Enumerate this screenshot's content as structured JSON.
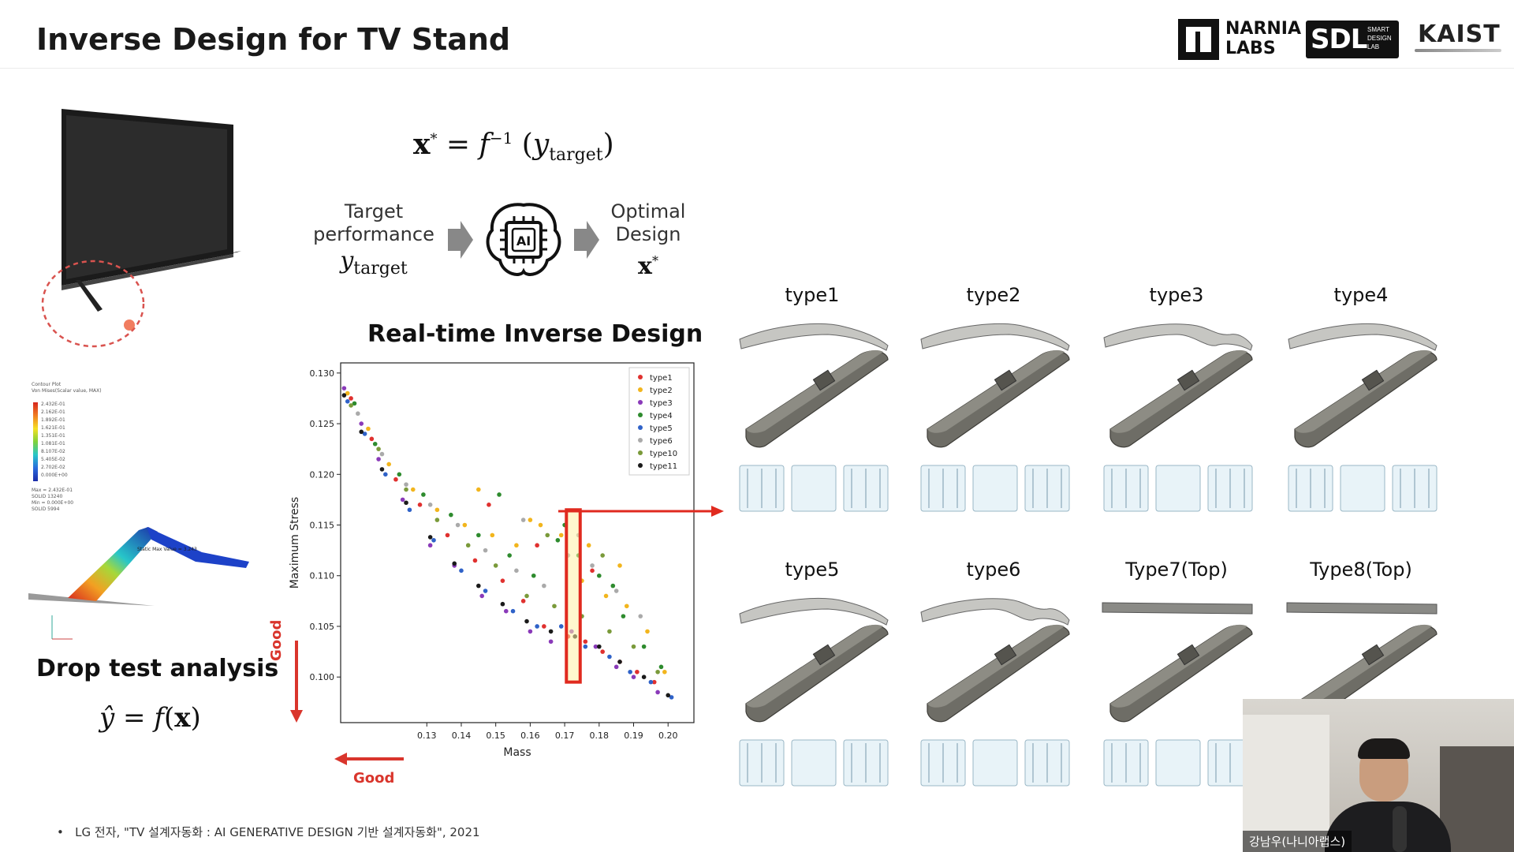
{
  "slide": {
    "title": "Inverse Design for TV Stand",
    "logos": {
      "narnia_line1": "NARNIA",
      "narnia_line2": "LABS",
      "sdl_big": "SDL",
      "sdl_small": [
        "SMART",
        "DESIGN",
        "LAB"
      ],
      "kaist": "KAIST"
    },
    "formula_inverse": {
      "x": "x",
      "star": "*",
      "eq": "=",
      "f": "f",
      "inv": "−1",
      "y": "y",
      "sub": "target"
    },
    "flow": {
      "input_line1": "Target",
      "input_line2": "performance",
      "input_symbol": "y",
      "input_symbol_sub": "target",
      "ai_label": "AI",
      "output_line1": "Optimal",
      "output_line2": "Design",
      "output_symbol": "x",
      "output_symbol_sup": "*"
    },
    "realtime_title": "Real-time Inverse Design",
    "drop_test_label": "Drop test analysis",
    "drop_formula": {
      "yhat": "ŷ",
      "eq": "=",
      "f": "f",
      "x": "x"
    },
    "good_vertical": "Good",
    "good_horizontal": "Good",
    "contour_legend": {
      "title_line1": "Contour Plot",
      "title_line2": "Von Mises(Scalar value, MAX)",
      "values": [
        "2.432E-01",
        "2.162E-01",
        "1.892E-01",
        "1.621E-01",
        "1.351E-01",
        "1.081E-01",
        "8.107E-02",
        "5.405E-02",
        "2.702E-02",
        "0.000E+00"
      ],
      "info": [
        "Max = 2.432E-01",
        "SOLID 13240",
        "Min = 0.000E+00",
        "SOLID 5994"
      ],
      "callout": "Static Max Value = 3.243"
    },
    "types": [
      "type1",
      "type2",
      "type3",
      "type4",
      "type5",
      "type6",
      "Type7(Top)",
      "Type8(Top)"
    ],
    "footnote": "LG 전자, \"TV 설계자동화 : AI GENERATIVE DESIGN 기반 설계자동화\", 2021",
    "footnote_bullet": "•",
    "webcam_name": "강남우(나니아랩스)"
  },
  "chart_data": {
    "type": "scatter",
    "xlabel": "Mass",
    "ylabel": "Maximum Stress",
    "xlim": [
      0.105,
      0.2075
    ],
    "ylim": [
      0.0955,
      0.131
    ],
    "xticks": [
      0.13,
      0.14,
      0.15,
      0.16,
      0.17,
      0.18,
      0.19,
      0.2
    ],
    "xtick_labels": [
      "0.13",
      "0.14",
      "0.15",
      "0.16",
      "0.17",
      "0.18",
      "0.19",
      "0.20"
    ],
    "yticks": [
      0.1,
      0.105,
      0.11,
      0.115,
      0.12,
      0.125,
      0.13
    ],
    "ytick_labels": [
      "0.100",
      "0.105",
      "0.110",
      "0.115",
      "0.120",
      "0.125",
      "0.130"
    ],
    "legend_position": "top-right",
    "highlight_x_range": [
      0.1705,
      0.1745
    ],
    "highlight_y_range": [
      0.0995,
      0.1165
    ],
    "series": [
      {
        "name": "type1",
        "color": "#e0312f",
        "x": [
          0.108,
          0.114,
          0.121,
          0.128,
          0.136,
          0.144,
          0.152,
          0.158,
          0.164,
          0.171,
          0.176,
          0.181,
          0.186,
          0.191,
          0.196,
          0.148,
          0.162,
          0.178
        ],
        "y": [
          0.1275,
          0.1235,
          0.1195,
          0.117,
          0.114,
          0.1115,
          0.1095,
          0.1075,
          0.105,
          0.104,
          0.1035,
          0.1025,
          0.1015,
          0.1005,
          0.0995,
          0.117,
          0.113,
          0.1105
        ]
      },
      {
        "name": "type2",
        "color": "#f2b51d",
        "x": [
          0.107,
          0.113,
          0.119,
          0.126,
          0.133,
          0.141,
          0.149,
          0.156,
          0.163,
          0.169,
          0.175,
          0.182,
          0.188,
          0.194,
          0.199,
          0.145,
          0.16,
          0.177,
          0.186
        ],
        "y": [
          0.128,
          0.1245,
          0.121,
          0.1185,
          0.1165,
          0.115,
          0.114,
          0.113,
          0.115,
          0.114,
          0.1095,
          0.108,
          0.107,
          0.1045,
          0.1005,
          0.1185,
          0.1155,
          0.113,
          0.111
        ]
      },
      {
        "name": "type3",
        "color": "#8a3ab9",
        "x": [
          0.106,
          0.111,
          0.116,
          0.123,
          0.131,
          0.138,
          0.146,
          0.153,
          0.16,
          0.166,
          0.172,
          0.179,
          0.185,
          0.19,
          0.197
        ],
        "y": [
          0.1285,
          0.125,
          0.1215,
          0.1175,
          0.113,
          0.111,
          0.108,
          0.1065,
          0.1045,
          0.1035,
          0.1045,
          0.103,
          0.101,
          0.1,
          0.0985
        ]
      },
      {
        "name": "type4",
        "color": "#2e8b2e",
        "x": [
          0.109,
          0.115,
          0.122,
          0.129,
          0.137,
          0.145,
          0.154,
          0.161,
          0.168,
          0.174,
          0.18,
          0.187,
          0.193,
          0.198,
          0.151,
          0.17,
          0.184
        ],
        "y": [
          0.127,
          0.123,
          0.12,
          0.118,
          0.116,
          0.114,
          0.112,
          0.11,
          0.1135,
          0.112,
          0.11,
          0.106,
          0.103,
          0.101,
          0.118,
          0.115,
          0.109
        ]
      },
      {
        "name": "type5",
        "color": "#2f62c8",
        "x": [
          0.107,
          0.112,
          0.118,
          0.125,
          0.132,
          0.14,
          0.147,
          0.155,
          0.162,
          0.169,
          0.176,
          0.183,
          0.189,
          0.195,
          0.201
        ],
        "y": [
          0.1272,
          0.124,
          0.12,
          0.1165,
          0.1135,
          0.1105,
          0.1085,
          0.1065,
          0.105,
          0.105,
          0.103,
          0.102,
          0.1005,
          0.0995,
          0.098
        ]
      },
      {
        "name": "type6",
        "color": "#aaaaaa",
        "x": [
          0.11,
          0.117,
          0.124,
          0.131,
          0.139,
          0.147,
          0.156,
          0.164,
          0.171,
          0.178,
          0.185,
          0.192,
          0.158,
          0.174
        ],
        "y": [
          0.126,
          0.122,
          0.119,
          0.117,
          0.115,
          0.1125,
          0.1105,
          0.109,
          0.112,
          0.111,
          0.1085,
          0.106,
          0.1155,
          0.114
        ]
      },
      {
        "name": "type10",
        "color": "#7a9a3a",
        "x": [
          0.108,
          0.116,
          0.124,
          0.133,
          0.142,
          0.15,
          0.159,
          0.167,
          0.175,
          0.183,
          0.19,
          0.197,
          0.165,
          0.181
        ],
        "y": [
          0.1268,
          0.1225,
          0.1185,
          0.1155,
          0.113,
          0.111,
          0.108,
          0.107,
          0.106,
          0.1045,
          0.103,
          0.1005,
          0.114,
          0.112
        ]
      },
      {
        "name": "type11",
        "color": "#1a1a1a",
        "x": [
          0.106,
          0.111,
          0.117,
          0.124,
          0.131,
          0.138,
          0.145,
          0.152,
          0.159,
          0.166,
          0.173,
          0.18,
          0.186,
          0.193,
          0.2
        ],
        "y": [
          0.1278,
          0.1242,
          0.1205,
          0.1172,
          0.1138,
          0.1112,
          0.109,
          0.1072,
          0.1055,
          0.1045,
          0.104,
          0.103,
          0.1015,
          0.1,
          0.0982
        ]
      }
    ]
  }
}
